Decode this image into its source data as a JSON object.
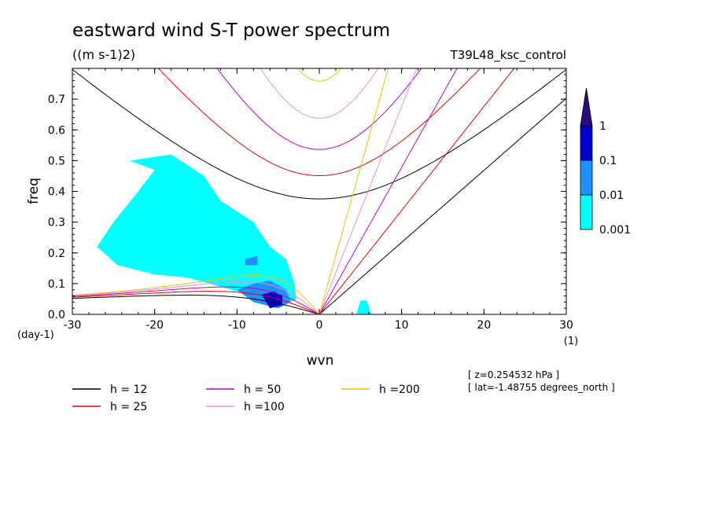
{
  "chart_data": {
    "type": "contour",
    "title": "eastward wind S-T power spectrum",
    "units": "((m s-1)2)",
    "run_label": "T39L48_ksc_control",
    "xlabel": "wvn",
    "ylabel": "freq",
    "x_unit_label": "(1)",
    "y_unit_label": "(day-1)",
    "xlim": [
      -30,
      30
    ],
    "ylim": [
      0,
      0.8
    ],
    "x_ticks": [
      -30,
      -20,
      -10,
      0,
      10,
      20,
      30
    ],
    "x_tick_labels": [
      "-30",
      "-20",
      "-10",
      "0",
      "10",
      "20",
      "30"
    ],
    "y_ticks": [
      0,
      0.1,
      0.2,
      0.3,
      0.4,
      0.5,
      0.6,
      0.7
    ],
    "y_tick_labels": [
      "0.0",
      "0.1",
      "0.2",
      "0.3",
      "0.4",
      "0.5",
      "0.6",
      "0.7"
    ],
    "colorbar": {
      "levels": [
        0.001,
        0.01,
        0.1,
        1
      ],
      "labels": [
        "0.001",
        "0.01",
        "0.1",
        "1"
      ],
      "colors": [
        "#00ffff",
        "#1e90ff",
        "#0000cd",
        "#2a0a80"
      ]
    },
    "shaded_regions": [
      {
        "level": "0.001",
        "color": "#00ffff",
        "points": [
          [
            -24.5,
            0.16
          ],
          [
            -27,
            0.22
          ],
          [
            -25,
            0.3
          ],
          [
            -22,
            0.4
          ],
          [
            -20,
            0.47
          ],
          [
            -23,
            0.5
          ],
          [
            -18,
            0.52
          ],
          [
            -14,
            0.45
          ],
          [
            -12,
            0.37
          ],
          [
            -8,
            0.3
          ],
          [
            -6,
            0.22
          ],
          [
            -4,
            0.18
          ],
          [
            -3,
            0.1
          ],
          [
            -2.8,
            0.05
          ],
          [
            -5,
            0.02
          ],
          [
            -8,
            0.06
          ],
          [
            -12,
            0.09
          ],
          [
            -16,
            0.12
          ],
          [
            -20,
            0.13
          ]
        ]
      },
      {
        "level": "0.001",
        "color": "#00ffff",
        "points": [
          [
            4.5,
            0.0
          ],
          [
            5,
            0.045
          ],
          [
            5.8,
            0.045
          ],
          [
            6.3,
            0.0
          ]
        ]
      },
      {
        "level": "0.01",
        "color": "#1e90ff",
        "points": [
          [
            -10,
            0.08
          ],
          [
            -8,
            0.1
          ],
          [
            -6,
            0.11
          ],
          [
            -4,
            0.08
          ],
          [
            -3.5,
            0.04
          ],
          [
            -5,
            0.02
          ],
          [
            -8,
            0.04
          ]
        ]
      },
      {
        "level": "0.01",
        "color": "#1e90ff",
        "points": [
          [
            -9,
            0.18
          ],
          [
            -7.5,
            0.19
          ],
          [
            -7.5,
            0.16
          ],
          [
            -9,
            0.16
          ]
        ]
      },
      {
        "level": "0.1",
        "color": "#0000cd",
        "points": [
          [
            -7,
            0.065
          ],
          [
            -5.5,
            0.075
          ],
          [
            -4.5,
            0.06
          ],
          [
            -4.5,
            0.03
          ],
          [
            -6,
            0.02
          ]
        ]
      }
    ],
    "series": [
      {
        "name": "h = 12",
        "h": 12,
        "color": "#000000",
        "branches": [
          "inertia_gravity_westward",
          "inertia_gravity_eastward",
          "kelvin",
          "rossby"
        ]
      },
      {
        "name": "h = 25",
        "h": 25,
        "color": "#e00000",
        "branches": [
          "inertia_gravity_westward",
          "inertia_gravity_eastward",
          "kelvin",
          "rossby"
        ]
      },
      {
        "name": "h = 50",
        "h": 50,
        "color": "#c000c0",
        "branches": [
          "inertia_gravity_westward",
          "inertia_gravity_eastward",
          "kelvin",
          "rossby"
        ]
      },
      {
        "name": "h =100",
        "h": 100,
        "color": "#e090e0",
        "branches": [
          "inertia_gravity_westward",
          "inertia_gravity_eastward",
          "kelvin",
          "rossby"
        ]
      },
      {
        "name": "h =200",
        "h": 200,
        "color": "#f0c000",
        "branches": [
          "inertia_gravity_westward",
          "kelvin",
          "rossby"
        ]
      }
    ],
    "annotations": [
      "[ z=0.254532 hPa ]",
      "[ lat=-1.48755 degrees_north ]"
    ]
  }
}
